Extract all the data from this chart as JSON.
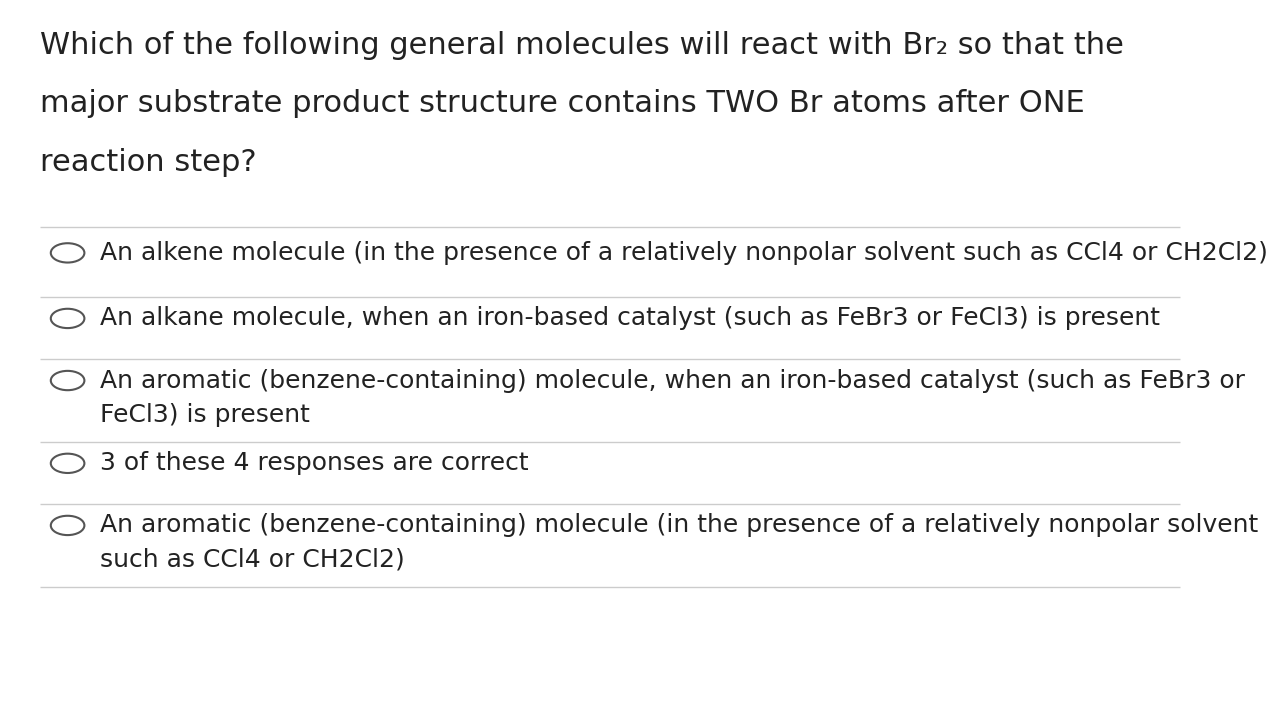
{
  "background_color": "#ffffff",
  "title_lines": [
    "Which of the following general molecules will react with Br₂ so that the",
    "major substrate product structure contains TWO Br atoms after ONE",
    "reaction step?"
  ],
  "options": [
    "An alkene molecule (in the presence of a relatively nonpolar solvent such as CCl4 or CH2Cl2)",
    "An alkane molecule, when an iron-based catalyst (such as FeBr3 or FeCl3) is present",
    "An aromatic (benzene-containing) molecule, when an iron-based catalyst (such as FeBr3 or\nFeCl3) is present",
    "3 of these 4 responses are correct",
    "An aromatic (benzene-containing) molecule (in the presence of a relatively nonpolar solvent\nsuch as CCl4 or CH2Cl2)"
  ],
  "text_color": "#222222",
  "line_color": "#cccccc",
  "circle_color": "#555555",
  "title_fontsize": 22,
  "option_fontsize": 18,
  "figsize": [
    12.0,
    6.9
  ]
}
